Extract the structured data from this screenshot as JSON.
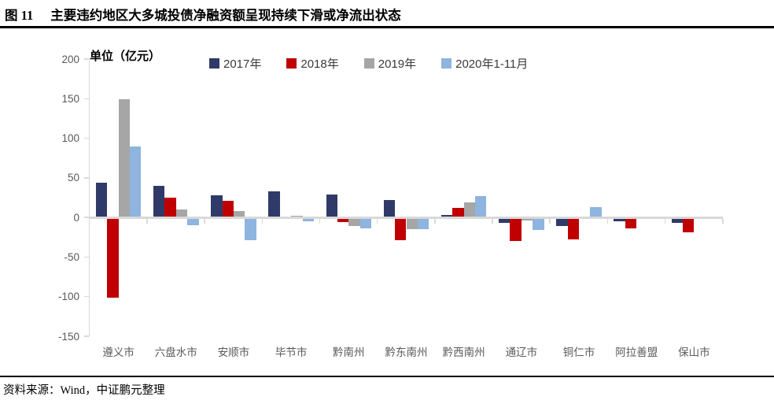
{
  "header": {
    "figure_label": "图 11",
    "title": "主要违约地区大多城投债净融资额呈现持续下滑或净流出状态"
  },
  "chart": {
    "unit_label": "单位（亿元）"
  },
  "chart_data": {
    "type": "bar",
    "title": "主要违约地区大多城投债净融资额呈现持续下滑或净流出状态",
    "unit": "亿元",
    "categories": [
      "遵义市",
      "六盘水市",
      "安顺市",
      "毕节市",
      "黔南州",
      "黔东南州",
      "黔西南州",
      "通辽市",
      "铜仁市",
      "阿拉善盟",
      "保山市"
    ],
    "series": [
      {
        "name": "2017年",
        "color": "#2F3A68",
        "values": [
          44,
          40,
          28,
          33,
          29,
          22,
          3,
          -5,
          -9,
          -3,
          -5
        ]
      },
      {
        "name": "2018年",
        "color": "#C00000",
        "values": [
          -100,
          25,
          21,
          0,
          -4,
          -27,
          12,
          -28,
          -26,
          -12,
          -17
        ]
      },
      {
        "name": "2019年",
        "color": "#A6A6A6",
        "values": [
          149,
          10,
          8,
          2,
          -9,
          -13,
          19,
          -2,
          0,
          0,
          0
        ]
      },
      {
        "name": "2020年1-11月",
        "color": "#8EB4DF",
        "values": [
          90,
          -8,
          -27,
          -3,
          -12,
          -13,
          27,
          -14,
          13,
          0,
          0
        ]
      }
    ],
    "ylim": [
      -150,
      200
    ],
    "yticks": [
      200,
      150,
      100,
      50,
      0,
      -50,
      -100,
      -150
    ],
    "grid": false,
    "legend_position": "top",
    "axis_color": "#D9D9D9",
    "tick_label_color": "#595959"
  },
  "footer": {
    "source": "资料来源：Wind，中证鹏元整理"
  }
}
